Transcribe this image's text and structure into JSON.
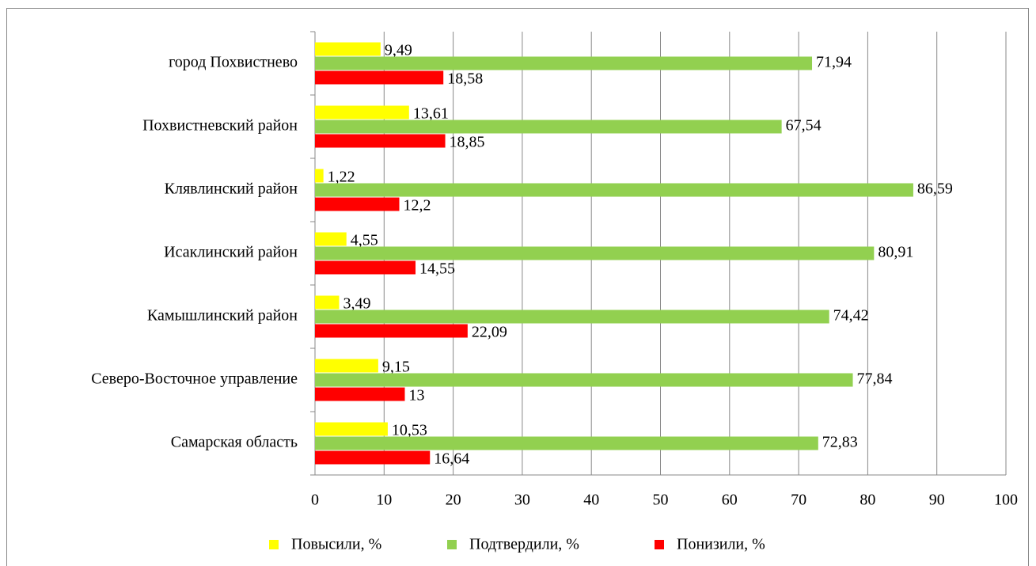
{
  "chart_data": {
    "type": "bar",
    "orientation": "horizontal",
    "categories": [
      "город Похвистнево",
      "Похвистневский район",
      "Клявлинский район",
      "Исаклинский район",
      "Камышлинский район",
      "Северо-Восточное управление",
      "Самарская область"
    ],
    "series": [
      {
        "name": "Повысили, %",
        "color": "#ffff00",
        "values": [
          9.49,
          13.61,
          1.22,
          4.55,
          3.49,
          9.15,
          10.53
        ],
        "value_labels": [
          "9,49",
          "13,61",
          "1,22",
          "4,55",
          "3,49",
          "9,15",
          "10,53"
        ]
      },
      {
        "name": "Подтвердили, %",
        "color": "#92d050",
        "values": [
          71.94,
          67.54,
          86.59,
          80.91,
          74.42,
          77.84,
          72.83
        ],
        "value_labels": [
          "71,94",
          "67,54",
          "86,59",
          "80,91",
          "74,42",
          "77,84",
          "72,83"
        ]
      },
      {
        "name": "Понизили,  %",
        "color": "#ff0000",
        "values": [
          18.58,
          18.85,
          12.2,
          14.55,
          22.09,
          13,
          16.64
        ],
        "value_labels": [
          "18,58",
          "18,85",
          "12,2",
          "14,55",
          "22,09",
          "13",
          "16,64"
        ]
      }
    ],
    "xlim": [
      0,
      100
    ],
    "xticks": [
      0,
      10,
      20,
      30,
      40,
      50,
      60,
      70,
      80,
      90,
      100
    ],
    "grid": true,
    "legend": "bottom"
  }
}
